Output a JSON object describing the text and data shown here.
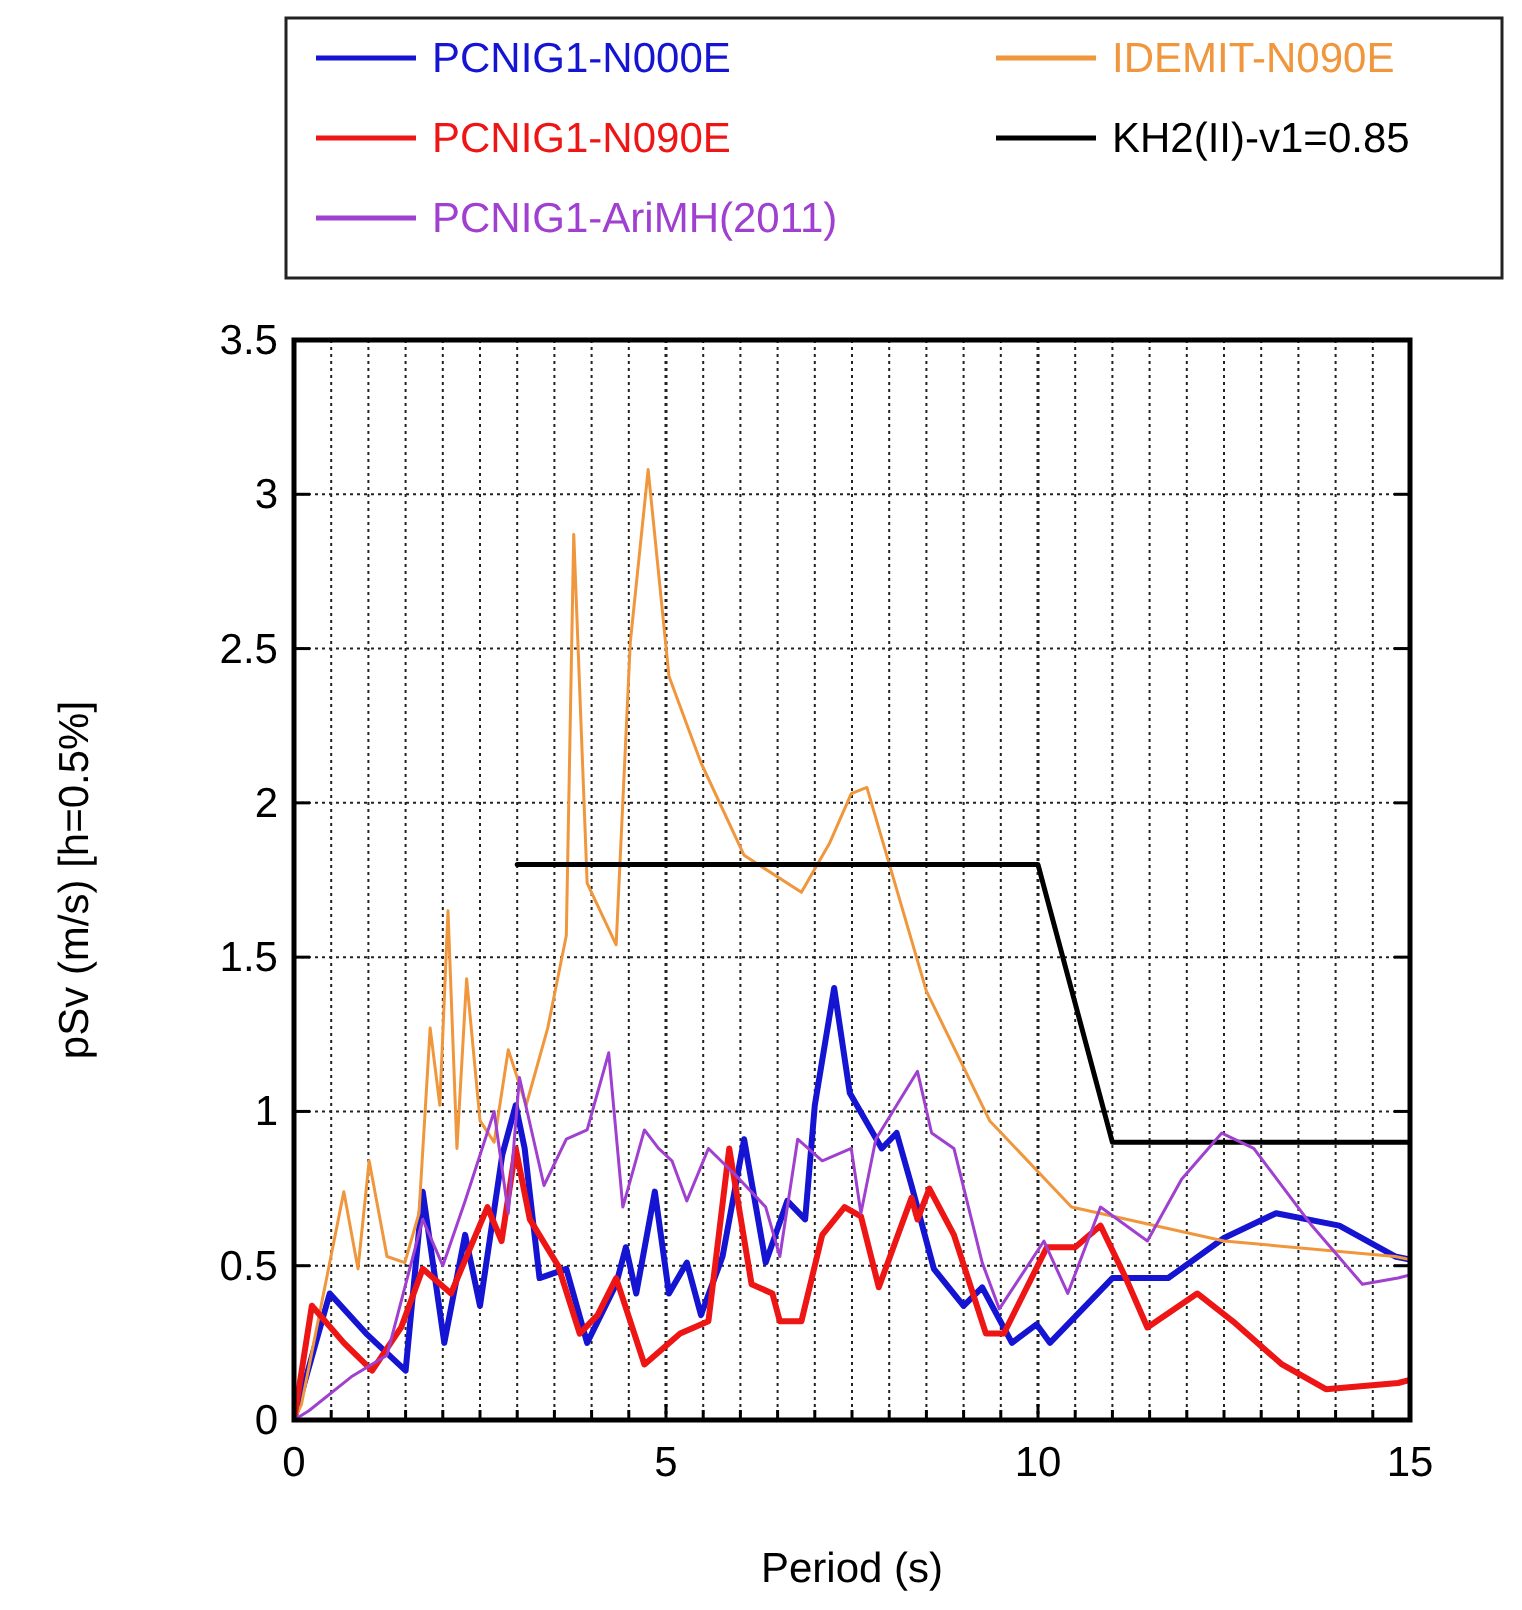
{
  "chart_data": {
    "type": "line",
    "xlabel": "Period (s)",
    "ylabel": "pSv (m/s) [h=0.5%]",
    "xlim": [
      0,
      15
    ],
    "ylim": [
      0,
      3.5
    ],
    "xticks": [
      0,
      {
        "value": 0.5,
        "label": null
      },
      {
        "value": 1,
        "label": null
      },
      {
        "value": 1.5,
        "label": null
      },
      {
        "value": 2,
        "label": null
      },
      {
        "value": 2.5,
        "label": null
      },
      {
        "value": 3,
        "label": null
      },
      {
        "value": 3.5,
        "label": null
      },
      {
        "value": 4,
        "label": null
      },
      {
        "value": 4.5,
        "label": null
      },
      5,
      {
        "value": 5.5,
        "label": null
      },
      {
        "value": 6,
        "label": null
      },
      {
        "value": 6.5,
        "label": null
      },
      {
        "value": 7,
        "label": null
      },
      {
        "value": 7.5,
        "label": null
      },
      {
        "value": 8,
        "label": null
      },
      {
        "value": 8.5,
        "label": null
      },
      {
        "value": 9,
        "label": null
      },
      {
        "value": 9.5,
        "label": null
      },
      10,
      {
        "value": 10.5,
        "label": null
      },
      {
        "value": 11,
        "label": null
      },
      {
        "value": 11.5,
        "label": null
      },
      {
        "value": 12,
        "label": null
      },
      {
        "value": 12.5,
        "label": null
      },
      {
        "value": 13,
        "label": null
      },
      {
        "value": 13.5,
        "label": null
      },
      {
        "value": 14,
        "label": null
      },
      {
        "value": 14.5,
        "label": null
      },
      15
    ],
    "yticks": [
      0,
      0.5,
      1,
      1.5,
      2,
      2.5,
      3,
      3.5
    ],
    "grid": true,
    "legend": "top",
    "marker": "none",
    "line_style": "solid",
    "series": [
      {
        "name": "PCNIG1-N000E",
        "color": "#1414d2",
        "x": [
          0,
          0.48,
          0.97,
          1.5,
          1.73,
          2.02,
          2.3,
          2.5,
          2.8,
          2.98,
          3.1,
          3.3,
          3.66,
          3.94,
          4.33,
          4.46,
          4.6,
          4.85,
          5.04,
          5.28,
          5.47,
          5.76,
          6.05,
          6.34,
          6.63,
          6.87,
          7.0,
          7.26,
          7.47,
          7.9,
          8.1,
          8.3,
          8.6,
          9.0,
          9.25,
          9.65,
          9.98,
          10.16,
          11.0,
          11.75,
          12.5,
          13.2,
          14.05,
          14.8,
          15
        ],
        "values": [
          0,
          0.41,
          0.28,
          0.16,
          0.74,
          0.25,
          0.6,
          0.37,
          0.86,
          1.02,
          0.88,
          0.46,
          0.49,
          0.25,
          0.44,
          0.56,
          0.41,
          0.74,
          0.41,
          0.51,
          0.34,
          0.53,
          0.91,
          0.51,
          0.71,
          0.65,
          1.02,
          1.4,
          1.06,
          0.88,
          0.93,
          0.76,
          0.49,
          0.37,
          0.43,
          0.25,
          0.31,
          0.25,
          0.46,
          0.46,
          0.59,
          0.67,
          0.63,
          0.53,
          0.52
        ]
      },
      {
        "name": "IDEMIT-N090E",
        "color": "#f0963c",
        "x": [
          0,
          0.1,
          0.67,
          0.86,
          1.01,
          1.25,
          1.49,
          1.68,
          1.83,
          1.96,
          2.07,
          2.19,
          2.32,
          2.5,
          2.69,
          2.88,
          3.12,
          3.41,
          3.66,
          3.76,
          3.94,
          4.33,
          4.52,
          4.76,
          5.04,
          5.47,
          6.05,
          6.82,
          7.2,
          7.49,
          7.7,
          8.5,
          9.35,
          10.45,
          12.5,
          14.8,
          15
        ],
        "values": [
          0,
          0.05,
          0.74,
          0.49,
          0.84,
          0.53,
          0.51,
          0.67,
          1.27,
          1.02,
          1.65,
          0.88,
          1.43,
          0.97,
          0.9,
          1.2,
          1.02,
          1.27,
          1.57,
          2.87,
          1.74,
          1.54,
          2.52,
          3.08,
          2.41,
          2.13,
          1.83,
          1.71,
          1.87,
          2.03,
          2.05,
          1.39,
          0.97,
          0.69,
          0.58,
          0.53,
          0.52
        ]
      },
      {
        "name": "PCNIG1-N090E",
        "color": "#ee1515",
        "x": [
          0,
          0.24,
          0.67,
          1.05,
          1.44,
          1.73,
          2.11,
          2.6,
          2.79,
          2.98,
          3.17,
          3.55,
          3.84,
          4.08,
          4.33,
          4.71,
          5.19,
          5.57,
          5.85,
          6.15,
          6.43,
          6.53,
          6.82,
          7.1,
          7.4,
          7.62,
          7.86,
          8.3,
          8.38,
          8.54,
          8.87,
          9.3,
          9.54,
          10.12,
          10.5,
          10.84,
          11.18,
          11.47,
          12.14,
          12.62,
          13.28,
          13.87,
          14.84,
          15
        ],
        "values": [
          0,
          0.37,
          0.25,
          0.16,
          0.3,
          0.49,
          0.41,
          0.69,
          0.58,
          0.88,
          0.65,
          0.5,
          0.28,
          0.34,
          0.46,
          0.18,
          0.28,
          0.32,
          0.88,
          0.44,
          0.41,
          0.32,
          0.32,
          0.6,
          0.69,
          0.66,
          0.43,
          0.72,
          0.65,
          0.75,
          0.6,
          0.28,
          0.28,
          0.56,
          0.56,
          0.63,
          0.46,
          0.3,
          0.41,
          0.32,
          0.18,
          0.1,
          0.12,
          0.13
        ]
      },
      {
        "name": "KH2(II)-v1=0.85",
        "color": "#000000",
        "x": [
          3,
          10,
          11,
          15
        ],
        "values": [
          1.8,
          1.8,
          0.9,
          0.9
        ]
      },
      {
        "name": "PCNIG1-AriMH(2011)",
        "color": "#a040d0",
        "x": [
          0,
          0.2,
          0.77,
          1.25,
          1.73,
          2.0,
          2.3,
          2.69,
          2.88,
          3.03,
          3.36,
          3.66,
          3.94,
          4.23,
          4.42,
          4.71,
          4.9,
          5.08,
          5.28,
          5.57,
          5.95,
          6.34,
          6.53,
          6.77,
          7.1,
          7.49,
          7.62,
          7.82,
          8.1,
          8.38,
          8.57,
          8.87,
          9.25,
          9.48,
          10.08,
          10.4,
          10.84,
          11.47,
          11.93,
          12.47,
          12.9,
          13.68,
          14.36,
          14.84,
          15
        ],
        "values": [
          0,
          0.03,
          0.14,
          0.21,
          0.65,
          0.5,
          0.71,
          1.0,
          0.67,
          1.11,
          0.76,
          0.91,
          0.94,
          1.19,
          0.69,
          0.94,
          0.88,
          0.84,
          0.71,
          0.88,
          0.79,
          0.69,
          0.53,
          0.91,
          0.84,
          0.88,
          0.67,
          0.91,
          1.02,
          1.13,
          0.93,
          0.88,
          0.51,
          0.36,
          0.58,
          0.41,
          0.69,
          0.58,
          0.78,
          0.93,
          0.88,
          0.63,
          0.44,
          0.46,
          0.47
        ]
      }
    ]
  }
}
